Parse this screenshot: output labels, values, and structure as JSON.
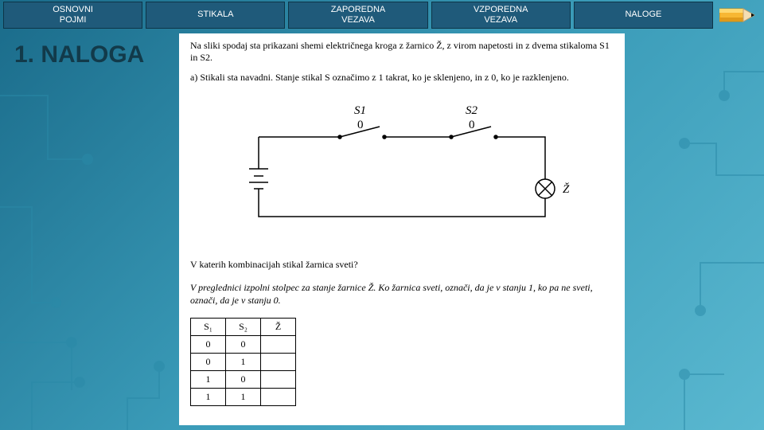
{
  "nav": {
    "items": [
      {
        "label": "OSNOVNI\nPOJMI"
      },
      {
        "label": "STIKALA"
      },
      {
        "label": "ZAPOREDNA\nVEZAVA"
      },
      {
        "label": "VZPOREDNA\nVEZAVA"
      },
      {
        "label": "NALOGE"
      }
    ]
  },
  "title": "1. NALOGA",
  "doc": {
    "intro": "Na sliki spodaj sta prikazani shemi električnega kroga z žarnico Ž, z virom napetosti in z dvema stikaloma S1 in S2.",
    "part_a": "a) Stikali sta navadni. Stanje stikal S označimo z 1 takrat, ko je sklenjeno, in z 0, ko je razklenjeno.",
    "circuit": {
      "labels": {
        "s1": "S1",
        "s1_state": "0",
        "s2": "S2",
        "s2_state": "0",
        "bulb": "Ž"
      },
      "colors": {
        "wire": "#000000",
        "bg": "#ffffff"
      }
    },
    "question1": "V katerih kombinacijah stikal žarnica sveti?",
    "question2": "V preglednici izpolni stolpec za stanje žarnice Ž. Ko žarnica sveti, označi, da je v stanju 1, ko pa ne sveti, označi, da je v stanju 0.",
    "table": {
      "columns": [
        "S₁",
        "S₂",
        "Ž"
      ],
      "rows": [
        [
          "0",
          "0",
          ""
        ],
        [
          "0",
          "1",
          ""
        ],
        [
          "1",
          "0",
          ""
        ],
        [
          "1",
          "1",
          ""
        ]
      ]
    }
  },
  "decoration_colors": {
    "nav_bg": "#1f5a7a",
    "slide_bg_from": "#1a6b8a",
    "slide_bg_to": "#5ab8d0",
    "circuit_line": "#2a8aa8"
  }
}
